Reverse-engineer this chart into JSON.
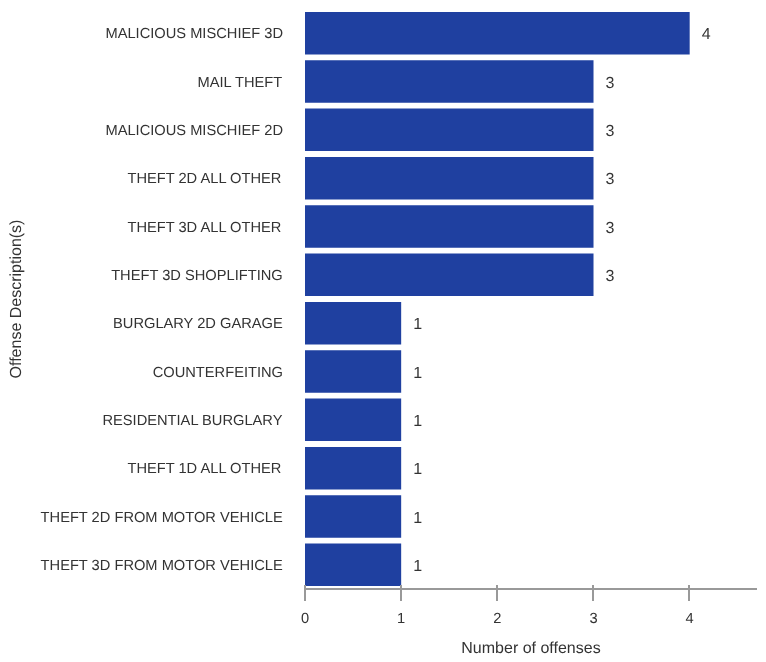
{
  "chart_data": {
    "type": "bar",
    "orientation": "horizontal",
    "xlabel": "Number of offenses",
    "ylabel": "Offense Description(s)",
    "categories": [
      "MALICIOUS MISCHIEF 3D",
      "MAIL THEFT",
      "MALICIOUS MISCHIEF 2D",
      "THEFT 2D ALL OTHER",
      "THEFT 3D ALL OTHER",
      "THEFT 3D SHOPLIFTING",
      "BURGLARY 2D GARAGE",
      "COUNTERFEITING",
      "RESIDENTIAL BURGLARY",
      "THEFT 1D ALL OTHER",
      "THEFT 2D FROM MOTOR VEHICLE",
      "THEFT 3D FROM MOTOR VEHICLE"
    ],
    "values": [
      4,
      3,
      3,
      3,
      3,
      3,
      1,
      1,
      1,
      1,
      1,
      1
    ],
    "color": "#1f40a0",
    "data_labels": true,
    "xlim": [
      0,
      4.7
    ],
    "xticks": [
      0,
      1,
      2,
      3,
      4
    ],
    "grid": false
  }
}
